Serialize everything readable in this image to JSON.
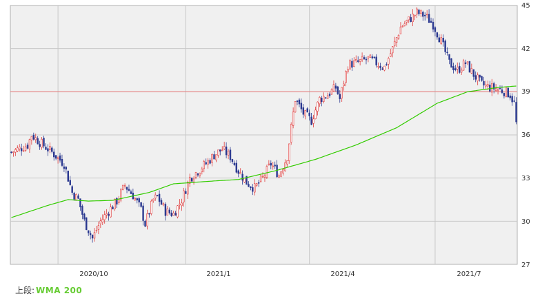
{
  "chart_data": {
    "type": "candlestick",
    "y_axis": {
      "range": [
        27,
        45
      ],
      "ticks": [
        "45",
        "42",
        "39",
        "36",
        "33",
        "30",
        "27"
      ],
      "position": "right"
    },
    "x_axis": {
      "ticks": [
        {
          "label": "2020/10",
          "index": 23
        },
        {
          "label": "2021/1",
          "index": 86
        },
        {
          "label": "2021/4",
          "index": 147
        },
        {
          "label": "2021/7",
          "index": 209
        }
      ],
      "count": 250
    },
    "grid": true,
    "horizontal_line": {
      "value": 39.0,
      "color": "#e88080"
    },
    "wma200": [
      [
        0,
        30.25
      ],
      [
        18,
        31.1
      ],
      [
        28,
        31.5
      ],
      [
        38,
        31.4
      ],
      [
        50,
        31.45
      ],
      [
        68,
        32.0
      ],
      [
        80,
        32.6
      ],
      [
        100,
        32.8
      ],
      [
        112,
        32.9
      ],
      [
        130,
        33.5
      ],
      [
        150,
        34.3
      ],
      [
        170,
        35.3
      ],
      [
        190,
        36.5
      ],
      [
        210,
        38.2
      ],
      [
        225,
        39.0
      ],
      [
        240,
        39.3
      ],
      [
        249,
        39.4
      ]
    ],
    "price_path": [
      [
        0,
        34.8
      ],
      [
        8,
        35.3
      ],
      [
        10,
        36.0
      ],
      [
        14,
        35.5
      ],
      [
        20,
        34.8
      ],
      [
        26,
        34.0
      ],
      [
        30,
        32.0
      ],
      [
        33,
        31.5
      ],
      [
        36,
        30.0
      ],
      [
        40,
        28.8
      ],
      [
        44,
        30.0
      ],
      [
        48,
        30.7
      ],
      [
        52,
        31.4
      ],
      [
        56,
        32.5
      ],
      [
        60,
        31.8
      ],
      [
        64,
        30.8
      ],
      [
        66,
        29.8
      ],
      [
        70,
        31.5
      ],
      [
        72,
        31.7
      ],
      [
        76,
        30.7
      ],
      [
        80,
        30.5
      ],
      [
        84,
        31.5
      ],
      [
        88,
        33.0
      ],
      [
        92,
        33.5
      ],
      [
        96,
        34.0
      ],
      [
        100,
        34.6
      ],
      [
        104,
        35.0
      ],
      [
        108,
        34.5
      ],
      [
        112,
        33.5
      ],
      [
        116,
        32.7
      ],
      [
        120,
        32.3
      ],
      [
        124,
        33.0
      ],
      [
        128,
        34.0
      ],
      [
        132,
        33.2
      ],
      [
        136,
        34.5
      ],
      [
        140,
        38.5
      ],
      [
        144,
        37.5
      ],
      [
        148,
        37.0
      ],
      [
        152,
        38.5
      ],
      [
        156,
        38.8
      ],
      [
        160,
        39.3
      ],
      [
        162,
        38.5
      ],
      [
        166,
        40.9
      ],
      [
        170,
        41.0
      ],
      [
        176,
        41.3
      ],
      [
        180,
        41.0
      ],
      [
        184,
        40.7
      ],
      [
        188,
        42.0
      ],
      [
        192,
        43.5
      ],
      [
        196,
        44.0
      ],
      [
        200,
        44.5
      ],
      [
        204,
        44.3
      ],
      [
        208,
        43.7
      ],
      [
        212,
        42.5
      ],
      [
        216,
        41.0
      ],
      [
        220,
        40.5
      ],
      [
        224,
        41.0
      ],
      [
        228,
        40.2
      ],
      [
        232,
        39.5
      ],
      [
        236,
        39.3
      ],
      [
        240,
        39.2
      ],
      [
        244,
        39.0
      ],
      [
        246,
        38.8
      ],
      [
        248,
        38.2
      ],
      [
        249,
        36.8
      ]
    ],
    "colors": {
      "up": "#e03c3c",
      "down": "#2b3990",
      "wma": "#33cc00",
      "grid": "#c8c8c8",
      "plot_bg": "#f0f0f0"
    }
  },
  "legend": {
    "prefix": "上段:",
    "name": "WMA 200"
  }
}
